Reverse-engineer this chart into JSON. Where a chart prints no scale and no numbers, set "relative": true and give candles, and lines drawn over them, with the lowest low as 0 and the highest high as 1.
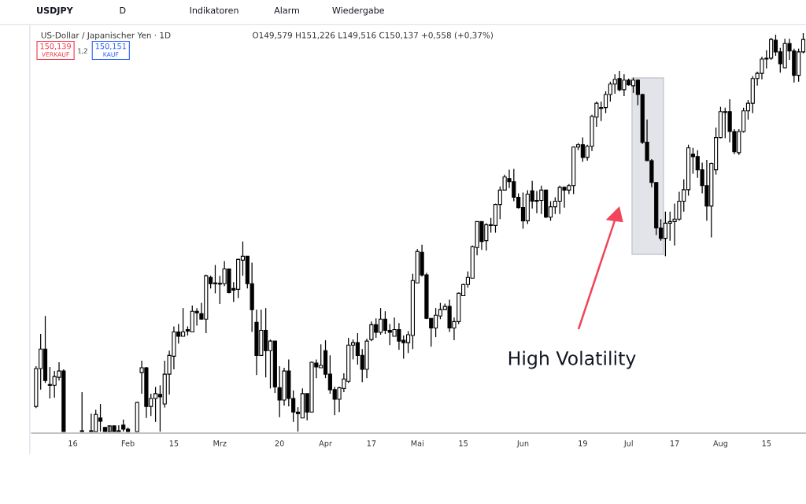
{
  "chart_data": {
    "type": "candlestick",
    "relative": true,
    "title": "US-Dollar / Japanischer Yen · 1D",
    "subtitle": "O149,579 H151,226 L149,516 C150,137 +0,558 (+0,37%)",
    "annotations": [
      "USDJPY",
      "D",
      "Indikatoren",
      "Alarm",
      "Wiedergabe",
      "150,139",
      "VERKAUF",
      "1,2",
      "150,151",
      "KAUF",
      "High Volatility"
    ],
    "color": "#000000",
    "categories": [
      null,
      null,
      null,
      null,
      null,
      null,
      null,
      null,
      "16",
      null,
      null,
      null,
      null,
      null,
      null,
      null,
      null,
      null,
      null,
      null,
      "Feb",
      null,
      null,
      null,
      null,
      null,
      null,
      null,
      null,
      null,
      "15",
      null,
      null,
      null,
      null,
      null,
      null,
      null,
      null,
      null,
      "Mrz",
      null,
      null,
      null,
      null,
      null,
      null,
      null,
      null,
      null,
      null,
      null,
      null,
      "20",
      null,
      null,
      null,
      null,
      null,
      null,
      null,
      null,
      null,
      "Apr",
      null,
      null,
      null,
      null,
      null,
      null,
      null,
      null,
      null,
      "17",
      null,
      null,
      null,
      null,
      null,
      null,
      null,
      null,
      null,
      "Mai",
      null,
      null,
      null,
      null,
      null,
      null,
      null,
      null,
      null,
      "15",
      null,
      null,
      null,
      null,
      null,
      null,
      null,
      null,
      null,
      null,
      null,
      null,
      "Jun",
      null,
      null,
      null,
      null,
      null,
      null,
      null,
      null,
      null,
      null,
      null,
      null,
      "19",
      null,
      null,
      null,
      null,
      null,
      null,
      null,
      null,
      null,
      "Jul",
      null,
      null,
      null,
      null,
      null,
      null,
      null,
      null,
      null,
      "17",
      null,
      null,
      null,
      null,
      null,
      null,
      null,
      null,
      null,
      "Aug",
      null,
      null,
      null,
      null,
      null,
      null,
      null,
      null,
      null,
      "15",
      null,
      null,
      null,
      null,
      null,
      null,
      null,
      null
    ],
    "ohlc": [
      [
        0.063,
        0.164,
        0.059,
        0.158
      ],
      [
        0.158,
        0.245,
        0.105,
        0.207
      ],
      [
        0.207,
        0.29,
        0.122,
        0.128
      ],
      [
        0.118,
        0.162,
        0.083,
        0.116
      ],
      [
        0.116,
        0.152,
        0.085,
        0.138
      ],
      [
        0.136,
        0.174,
        0.128,
        0.152
      ],
      [
        0.152,
        0.156,
        0,
        0
      ],
      null,
      null,
      null,
      [
        0,
        0.099,
        0,
        0
      ],
      null,
      [
        0,
        0.045,
        0,
        0
      ],
      [
        0,
        0.055,
        0,
        0.043
      ],
      [
        0.034,
        0.069,
        0,
        0.026
      ],
      [
        0.01,
        0.012,
        0,
        0
      ],
      [
        0,
        0.016,
        0,
        0.014
      ],
      [
        0.014,
        0.016,
        0,
        0
      ],
      [
        0,
        0.016,
        0,
        0
      ],
      [
        0.016,
        0.03,
        0,
        0.006
      ],
      [
        0.006,
        0.01,
        0,
        0
      ],
      null,
      [
        0,
        0.075,
        0,
        0.073
      ],
      [
        0.148,
        0.178,
        0.095,
        0.16
      ],
      [
        0.16,
        0.162,
        0.034,
        0.063
      ],
      [
        0.063,
        0.095,
        0.039,
        0.083
      ],
      [
        0.083,
        0.112,
        0.024,
        0.095
      ],
      [
        0.093,
        0.116,
        0,
        0.087
      ],
      [
        0.069,
        0.178,
        0.06,
        0.144
      ],
      [
        0.144,
        0.203,
        0.093,
        0.191
      ],
      [
        0.189,
        0.264,
        0.156,
        0.25
      ],
      [
        0.25,
        0.27,
        0.221,
        0.239
      ],
      [
        0.239,
        0.31,
        0.239,
        0.25
      ],
      [
        0.256,
        0.264,
        0.241,
        0.252
      ],
      [
        0.25,
        0.316,
        0.25,
        0.302
      ],
      [
        0.302,
        0.31,
        0.266,
        0.298
      ],
      [
        0.296,
        0.323,
        0.282,
        0.282
      ],
      [
        0.282,
        0.394,
        0.247,
        0.391
      ],
      [
        0.387,
        0.391,
        0.359,
        0.371
      ],
      [
        0.373,
        0.418,
        0.347,
        0.371
      ],
      [
        0.371,
        0.391,
        0.32,
        0.37
      ],
      [
        0.371,
        0.428,
        0.365,
        0.408
      ],
      [
        0.408,
        0.408,
        0.347,
        0.349
      ],
      [
        0.359,
        0.375,
        0.325,
        0.355
      ],
      [
        0.357,
        0.434,
        0.335,
        0.432
      ],
      [
        0.43,
        0.477,
        0.391,
        0.44
      ],
      [
        0.44,
        0.44,
        0.359,
        0.371
      ],
      [
        0.371,
        0.424,
        0.25,
        0.306
      ],
      [
        0.274,
        0.306,
        0.142,
        0.191
      ],
      [
        0.191,
        0.306,
        0.191,
        0.254
      ],
      [
        0.254,
        0.31,
        0.136,
        0.203
      ],
      [
        0.203,
        0.231,
        0.108,
        0.227
      ],
      [
        0.227,
        0.227,
        0.097,
        0.112
      ],
      [
        0.11,
        0.164,
        0.036,
        0.079
      ],
      [
        0.079,
        0.16,
        0.065,
        0.152
      ],
      [
        0.152,
        0.181,
        0.063,
        0.083
      ],
      [
        0.083,
        0.103,
        0.024,
        0.049
      ],
      [
        0.049,
        0.061,
        0,
        0.045
      ],
      [
        0.034,
        0.108,
        0.034,
        0.095
      ],
      [
        0.095,
        0.095,
        0.028,
        0.049
      ],
      [
        0.049,
        0.176,
        0.049,
        0.174
      ],
      [
        0.172,
        0.181,
        0.134,
        0.162
      ],
      [
        0.16,
        0.219,
        0.16,
        0.166
      ],
      [
        0.203,
        0.229,
        0.134,
        0.144
      ],
      [
        0.144,
        0.191,
        0.095,
        0.105
      ],
      [
        0.105,
        0.112,
        0.041,
        0.081
      ],
      [
        0.081,
        0.112,
        0.049,
        0.11
      ],
      [
        0.108,
        0.146,
        0.099,
        0.132
      ],
      [
        0.126,
        0.235,
        0.122,
        0.217
      ],
      [
        0.217,
        0.231,
        0.181,
        0.223
      ],
      [
        0.223,
        0.247,
        0.168,
        0.191
      ],
      [
        0.191,
        0.207,
        0.124,
        0.156
      ],
      [
        0.156,
        0.233,
        0.134,
        0.227
      ],
      [
        0.231,
        0.276,
        0.227,
        0.268
      ],
      [
        0.268,
        0.284,
        0.235,
        0.249
      ],
      [
        0.249,
        0.31,
        0.243,
        0.282
      ],
      [
        0.282,
        0.302,
        0.245,
        0.254
      ],
      [
        0.254,
        0.27,
        0.217,
        0.249
      ],
      [
        0.239,
        0.286,
        0.239,
        0.256
      ],
      [
        0.256,
        0.272,
        0.205,
        0.227
      ],
      [
        0.229,
        0.241,
        0.183,
        0.223
      ],
      [
        0.223,
        0.252,
        0.197,
        0.243
      ],
      [
        0.241,
        0.396,
        0.207,
        0.379
      ],
      [
        0.373,
        0.458,
        0.373,
        0.452
      ],
      [
        0.45,
        0.469,
        0.389,
        0.393
      ],
      [
        0.393,
        0.398,
        0.282,
        0.284
      ],
      [
        0.284,
        0.284,
        0.213,
        0.26
      ],
      [
        0.26,
        0.31,
        0.237,
        0.292
      ],
      [
        0.29,
        0.323,
        0.282,
        0.306
      ],
      [
        0.306,
        0.321,
        0.306,
        0.314
      ],
      [
        0.314,
        0.331,
        0.25,
        0.26
      ],
      [
        0.26,
        0.286,
        0.229,
        0.276
      ],
      [
        0.276,
        0.349,
        0.27,
        0.347
      ],
      [
        0.341,
        0.371,
        0.341,
        0.369
      ],
      [
        0.369,
        0.402,
        0.361,
        0.387
      ],
      [
        0.385,
        0.467,
        0.385,
        0.464
      ],
      [
        0.462,
        0.527,
        0.442,
        0.527
      ],
      [
        0.527,
        0.527,
        0.456,
        0.477
      ],
      [
        0.479,
        0.523,
        0.454,
        0.519
      ],
      [
        0.517,
        0.536,
        0.499,
        0.519
      ],
      [
        0.517,
        0.572,
        0.499,
        0.57
      ],
      [
        0.57,
        0.615,
        0.533,
        0.606
      ],
      [
        0.606,
        0.645,
        0.606,
        0.639
      ],
      [
        0.635,
        0.657,
        0.611,
        0.627
      ],
      [
        0.627,
        0.659,
        0.578,
        0.588
      ],
      [
        0.588,
        0.598,
        0.56,
        0.562
      ],
      [
        0.562,
        0.6,
        0.509,
        0.529
      ],
      [
        0.529,
        0.606,
        0.521,
        0.596
      ],
      [
        0.604,
        0.629,
        0.56,
        0.578
      ],
      [
        0.58,
        0.604,
        0.548,
        0.578
      ],
      [
        0.58,
        0.617,
        0.546,
        0.606
      ],
      [
        0.606,
        0.606,
        0.536,
        0.538
      ],
      [
        0.538,
        0.578,
        0.529,
        0.564
      ],
      [
        0.564,
        0.588,
        0.546,
        0.578
      ],
      [
        0.578,
        0.617,
        0.546,
        0.613
      ],
      [
        0.613,
        0.615,
        0.562,
        0.606
      ],
      [
        0.606,
        0.621,
        0.596,
        0.617
      ],
      [
        0.617,
        0.716,
        0.596,
        0.714
      ],
      [
        0.714,
        0.724,
        0.706,
        0.72
      ],
      [
        0.72,
        0.738,
        0.677,
        0.688
      ],
      [
        0.688,
        0.72,
        0.68,
        0.716
      ],
      [
        0.716,
        0.795,
        0.704,
        0.791
      ],
      [
        0.789,
        0.828,
        0.765,
        0.824
      ],
      [
        0.813,
        0.828,
        0.779,
        0.811
      ],
      [
        0.813,
        0.854,
        0.799,
        0.846
      ],
      [
        0.846,
        0.878,
        0.828,
        0.872
      ],
      [
        0.872,
        0.897,
        0.848,
        0.884
      ],
      [
        0.886,
        0.905,
        0.854,
        0.858
      ],
      [
        0.858,
        0.897,
        0.842,
        0.882
      ],
      [
        0.882,
        0.886,
        0.868,
        0.87
      ],
      [
        0.868,
        0.888,
        0.85,
        0.882
      ],
      [
        0.882,
        0.884,
        0.819,
        0.846
      ],
      [
        0.846,
        0.848,
        0.722,
        0.726
      ],
      [
        0.726,
        0.783,
        0.679,
        0.68
      ],
      [
        0.68,
        0.684,
        0.613,
        0.625
      ],
      [
        0.625,
        0.625,
        0.493,
        0.511
      ],
      [
        0.511,
        0.533,
        0.479,
        0.485
      ],
      [
        0.485,
        0.552,
        0.44,
        0.523
      ],
      [
        0.523,
        0.552,
        0.479,
        0.527
      ],
      [
        0.527,
        0.572,
        0.467,
        0.533
      ],
      [
        0.533,
        0.602,
        0.529,
        0.578
      ],
      [
        0.578,
        0.633,
        0.552,
        0.607
      ],
      [
        0.607,
        0.72,
        0.592,
        0.712
      ],
      [
        0.696,
        0.712,
        0.647,
        0.69
      ],
      [
        0.69,
        0.706,
        0.637,
        0.657
      ],
      [
        0.657,
        0.675,
        0.598,
        0.617
      ],
      [
        0.617,
        0.682,
        0.529,
        0.566
      ],
      [
        0.566,
        0.675,
        0.487,
        0.673
      ],
      [
        0.657,
        0.763,
        0.645,
        0.738
      ],
      [
        0.738,
        0.815,
        0.736,
        0.803
      ],
      [
        0.801,
        0.813,
        0.736,
        0.803
      ],
      [
        0.803,
        0.834,
        0.726,
        0.753
      ],
      [
        0.753,
        0.759,
        0.696,
        0.702
      ],
      [
        0.7,
        0.759,
        0.694,
        0.753
      ],
      [
        0.753,
        0.813,
        0.75,
        0.805
      ],
      [
        0.805,
        0.832,
        0.783,
        0.824
      ],
      [
        0.824,
        0.892,
        0.799,
        0.886
      ],
      [
        0.886,
        0.903,
        0.868,
        0.899
      ],
      [
        0.899,
        0.941,
        0.884,
        0.935
      ],
      [
        0.935,
        0.957,
        0.911,
        0.937
      ],
      [
        0.937,
        0.988,
        0.933,
        0.984
      ],
      [
        0.982,
        0.996,
        0.943,
        0.953
      ],
      [
        0.953,
        0.963,
        0.901,
        0.923
      ],
      [
        0.913,
        0.986,
        0.911,
        0.974
      ],
      [
        0.974,
        0.986,
        0.933,
        0.955
      ],
      [
        0.955,
        0.961,
        0.876,
        0.894
      ],
      [
        0.894,
        0.961,
        0.878,
        0.953
      ],
      [
        0.953,
        1,
        0.949,
        0.984
      ]
    ]
  }
}
